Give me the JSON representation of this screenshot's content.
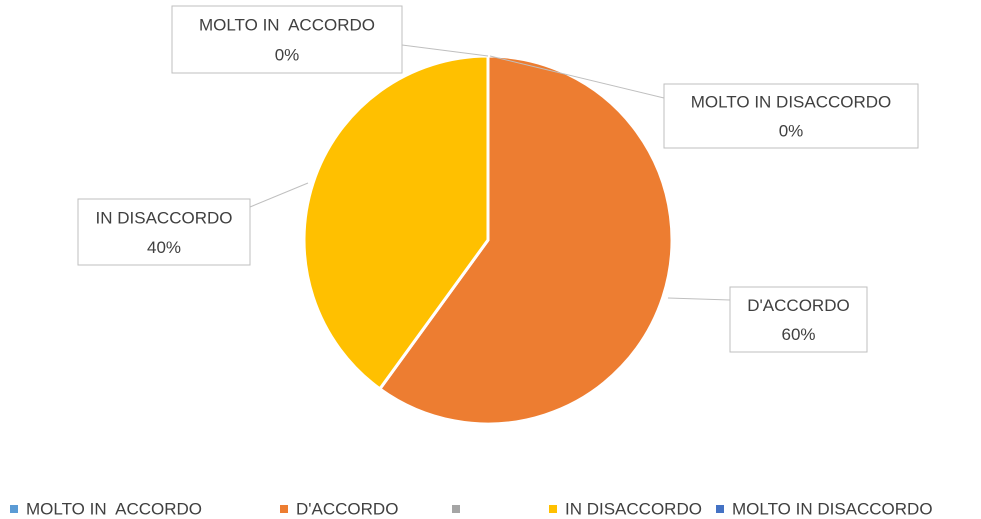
{
  "chart_data": {
    "type": "pie",
    "categories": [
      "MOLTO IN  ACCORDO",
      "D'ACCORDO",
      null,
      "IN DISACCORDO",
      "MOLTO IN DISACCORDO"
    ],
    "values": [
      0,
      60,
      0,
      40,
      0
    ],
    "value_labels": [
      "0%",
      "60%",
      null,
      "40%",
      "0%"
    ],
    "colors": [
      "#5b9bd5",
      "#ed7d31",
      "#a5a5a5",
      "#ffc000",
      "#4472c4"
    ],
    "legend": "bottom"
  }
}
